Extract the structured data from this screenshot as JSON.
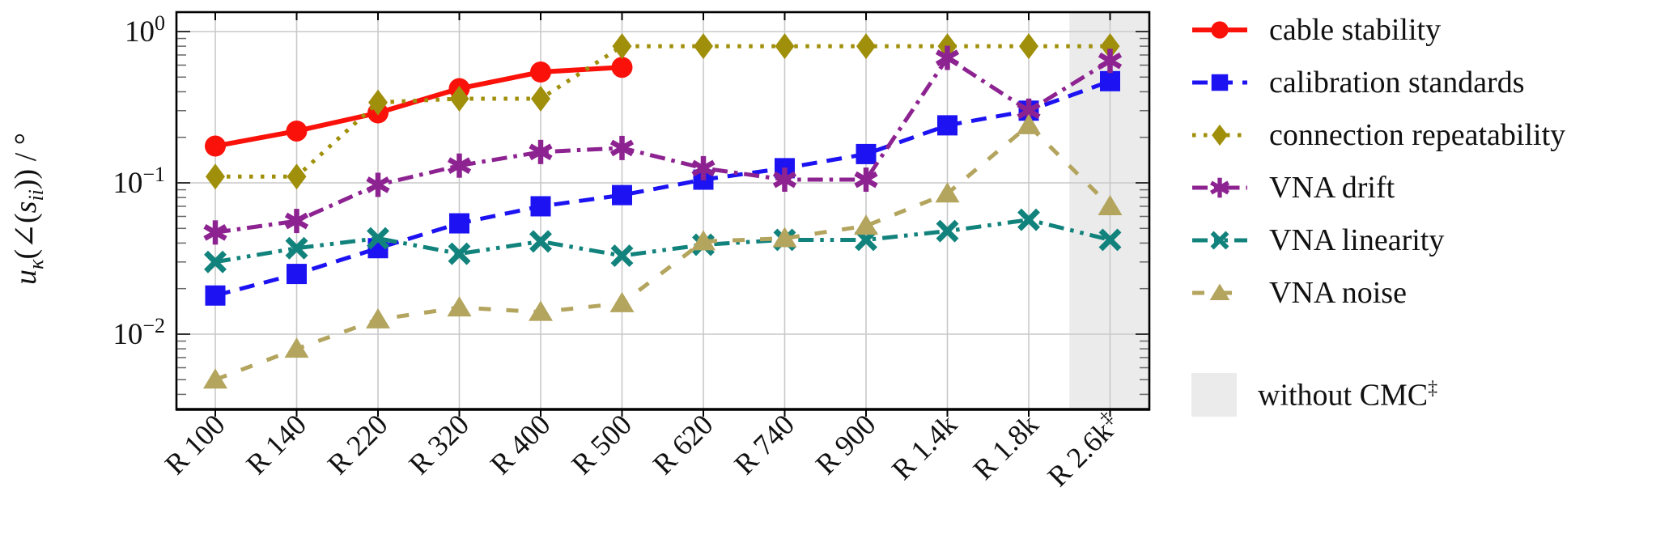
{
  "chart_data": {
    "type": "line",
    "y_scale": "log10",
    "title": "",
    "xlabel": "",
    "ylabel": "u_κ(∠(s_ii)) / °",
    "ylabel_parts": [
      {
        "t": "u",
        "i": true,
        "sub": false
      },
      {
        "t": "κ",
        "i": true,
        "sub": true
      },
      {
        "t": "(∠(",
        "i": false,
        "sub": false
      },
      {
        "t": "s",
        "i": true,
        "sub": false
      },
      {
        "t": "ii",
        "i": true,
        "sub": true
      },
      {
        "t": ")) / °",
        "i": false,
        "sub": false
      }
    ],
    "categories": [
      "R 100",
      "R 140",
      "R 220",
      "R 320",
      "R 400",
      "R 500",
      "R 620",
      "R 740",
      "R 900",
      "R 1.4k",
      "R 1.8k",
      "R 2.6k‡"
    ],
    "y_ticks": [
      {
        "value": 1,
        "base": "10",
        "exp": "0"
      },
      {
        "value": 0.1,
        "base": "10",
        "exp": "−1"
      },
      {
        "value": 0.01,
        "base": "10",
        "exp": "−2"
      }
    ],
    "ylim": [
      0.0032,
      1.35
    ],
    "grid": true,
    "legend_position": "outside-right",
    "series": [
      {
        "name": "cable stability",
        "color": "#fa120a",
        "marker": "circle",
        "line": "solid",
        "values": [
          0.175,
          0.22,
          0.29,
          0.42,
          0.54,
          0.58,
          null,
          null,
          null,
          null,
          null,
          null
        ]
      },
      {
        "name": "calibration standards",
        "color": "#1c12f2",
        "marker": "square",
        "line": "dashed",
        "values": [
          0.018,
          0.025,
          0.037,
          0.054,
          0.07,
          0.083,
          0.105,
          0.125,
          0.155,
          0.24,
          0.3,
          0.47
        ]
      },
      {
        "name": "connection repeatability",
        "color": "#a08f0a",
        "marker": "diamond",
        "line": "dotted",
        "values": [
          0.11,
          0.11,
          0.34,
          0.36,
          0.36,
          0.8,
          0.8,
          0.8,
          0.8,
          0.8,
          0.8,
          0.8
        ]
      },
      {
        "name": "VNA drift",
        "color": "#8d2391",
        "marker": "asterisk",
        "line": "dashdot",
        "values": [
          0.047,
          0.056,
          0.097,
          0.13,
          0.16,
          0.17,
          0.125,
          0.105,
          0.105,
          0.67,
          0.3,
          0.64
        ]
      },
      {
        "name": "VNA linearity",
        "color": "#12827c",
        "marker": "x",
        "line": "dashdotdot",
        "values": [
          0.03,
          0.037,
          0.043,
          0.034,
          0.041,
          0.033,
          0.039,
          0.042,
          0.042,
          0.048,
          0.057,
          0.042
        ]
      },
      {
        "name": "VNA noise",
        "color": "#b3a45e",
        "marker": "triangle",
        "line": "longdash",
        "values": [
          0.005,
          0.008,
          0.0125,
          0.015,
          0.014,
          0.016,
          0.041,
          0.043,
          0.052,
          0.085,
          0.24,
          0.07
        ]
      }
    ],
    "annotation_region": {
      "label": "without CMC",
      "label_sup": "‡",
      "covers_category": "R 2.6k‡",
      "color": "#ebebeb",
      "x_start_between": [
        "R 1.8k",
        "R 2.6k‡"
      ]
    },
    "colors": {
      "grid": "#c9c9c9",
      "axis": "#000000",
      "background": "#ffffff"
    }
  }
}
